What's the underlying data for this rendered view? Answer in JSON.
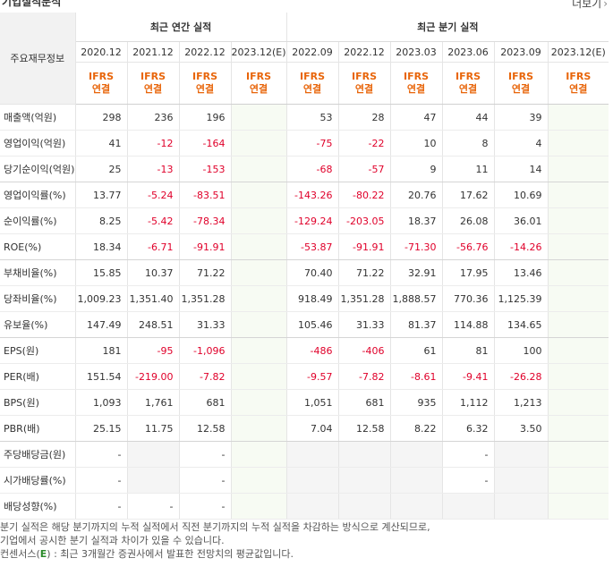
{
  "section_title": "기업실적분석",
  "more_label": "더보기",
  "header": {
    "row_label": "주요재무정보",
    "annual_title": "최근 연간 실적",
    "quarterly_title": "최근 분기 실적",
    "annual_periods": [
      "2020.12",
      "2021.12",
      "2022.12",
      "2023.12(E)"
    ],
    "quarterly_periods": [
      "2022.09",
      "2022.12",
      "2023.03",
      "2023.06",
      "2023.09",
      "2023.12(E)"
    ],
    "basis_line1": "IFRS",
    "basis_line2": "연결"
  },
  "rows": [
    {
      "label": "매출액(억원)",
      "annual": [
        "298",
        "236",
        "196",
        ""
      ],
      "quarterly": [
        "53",
        "28",
        "47",
        "44",
        "39",
        ""
      ]
    },
    {
      "label": "영업이익(억원)",
      "annual": [
        "41",
        "-12",
        "-164",
        ""
      ],
      "quarterly": [
        "-75",
        "-22",
        "10",
        "8",
        "4",
        ""
      ]
    },
    {
      "label": "당기순이익(억원)",
      "annual": [
        "25",
        "-13",
        "-153",
        ""
      ],
      "quarterly": [
        "-68",
        "-57",
        "9",
        "11",
        "14",
        ""
      ]
    },
    {
      "label": "영업이익률(%)",
      "annual": [
        "13.77",
        "-5.24",
        "-83.51",
        ""
      ],
      "quarterly": [
        "-143.26",
        "-80.22",
        "20.76",
        "17.62",
        "10.69",
        ""
      ]
    },
    {
      "label": "순이익률(%)",
      "annual": [
        "8.25",
        "-5.42",
        "-78.34",
        ""
      ],
      "quarterly": [
        "-129.24",
        "-203.05",
        "18.37",
        "26.08",
        "36.01",
        ""
      ]
    },
    {
      "label": "ROE(%)",
      "annual": [
        "18.34",
        "-6.71",
        "-91.91",
        ""
      ],
      "quarterly": [
        "-53.87",
        "-91.91",
        "-71.30",
        "-56.76",
        "-14.26",
        ""
      ]
    },
    {
      "label": "부채비율(%)",
      "annual": [
        "15.85",
        "10.37",
        "71.22",
        ""
      ],
      "quarterly": [
        "70.40",
        "71.22",
        "32.91",
        "17.95",
        "13.46",
        ""
      ]
    },
    {
      "label": "당좌비율(%)",
      "annual": [
        "1,009.23",
        "1,351.40",
        "1,351.28",
        ""
      ],
      "quarterly": [
        "918.49",
        "1,351.28",
        "1,888.57",
        "770.36",
        "1,125.39",
        ""
      ]
    },
    {
      "label": "유보율(%)",
      "annual": [
        "147.49",
        "248.51",
        "31.33",
        ""
      ],
      "quarterly": [
        "105.46",
        "31.33",
        "81.37",
        "114.88",
        "134.65",
        ""
      ]
    },
    {
      "label": "EPS(원)",
      "annual": [
        "181",
        "-95",
        "-1,096",
        ""
      ],
      "quarterly": [
        "-486",
        "-406",
        "61",
        "81",
        "100",
        ""
      ]
    },
    {
      "label": "PER(배)",
      "annual": [
        "151.54",
        "-219.00",
        "-7.82",
        ""
      ],
      "quarterly": [
        "-9.57",
        "-7.82",
        "-8.61",
        "-9.41",
        "-26.28",
        ""
      ]
    },
    {
      "label": "BPS(원)",
      "annual": [
        "1,093",
        "1,761",
        "681",
        ""
      ],
      "quarterly": [
        "1,051",
        "681",
        "935",
        "1,112",
        "1,213",
        ""
      ]
    },
    {
      "label": "PBR(배)",
      "annual": [
        "25.15",
        "11.75",
        "12.58",
        ""
      ],
      "quarterly": [
        "7.04",
        "12.58",
        "8.22",
        "6.32",
        "3.50",
        ""
      ]
    },
    {
      "label": "주당배당금(원)",
      "annual": [
        "-",
        "",
        "-",
        ""
      ],
      "quarterly": [
        "",
        "",
        "",
        "-",
        "",
        ""
      ]
    },
    {
      "label": "시가배당률(%)",
      "annual": [
        "-",
        "",
        "-",
        ""
      ],
      "quarterly": [
        "",
        "",
        "",
        "-",
        "",
        ""
      ]
    },
    {
      "label": "배당성향(%)",
      "annual": [
        "-",
        "-",
        "-",
        ""
      ],
      "quarterly": [
        "",
        "",
        "",
        "",
        "",
        ""
      ]
    }
  ],
  "notes": {
    "line1": "분기 실적은 해당 분기까지의 누적 실적에서 직전 분기까지의 누적 실적을 차감하는 방식으로 계산되므로,",
    "line2": "기업에서 공시한 분기 실적과 차이가 있을 수 있습니다.",
    "line3_prefix": "컨센서스(",
    "line3_mark": "E",
    "line3_suffix": ") : 최근 3개월간 증권사에서 발표한 전망치의 평균값입니다."
  }
}
